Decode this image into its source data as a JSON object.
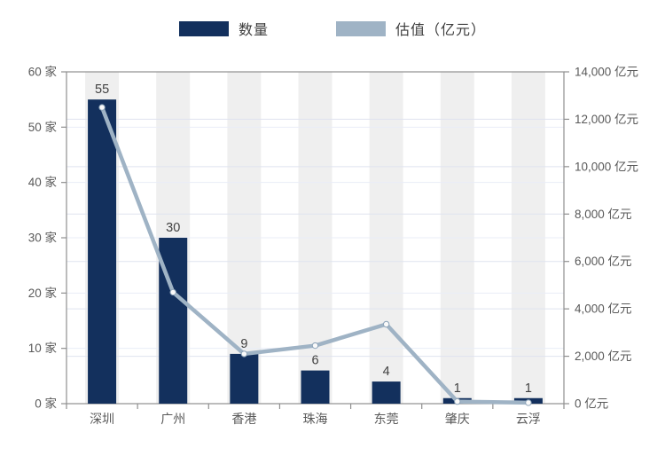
{
  "legend": {
    "items": [
      {
        "label": "数量",
        "color": "#13305d"
      },
      {
        "label": "估值（亿元）",
        "color": "#9fb3c5"
      }
    ]
  },
  "chart_data": {
    "type": "combo",
    "categories": [
      "深圳",
      "广州",
      "香港",
      "珠海",
      "东莞",
      "肇庆",
      "云浮"
    ],
    "series": [
      {
        "name": "数量",
        "type": "bar",
        "axis": "left",
        "color": "#13305d",
        "values": [
          55,
          30,
          9,
          6,
          4,
          1,
          1
        ],
        "data_labels": [
          "55",
          "30",
          "9",
          "6",
          "4",
          "1",
          "1"
        ]
      },
      {
        "name": "估值（亿元）",
        "type": "line",
        "axis": "right",
        "color": "#9fb3c5",
        "values": [
          12500,
          4700,
          2100,
          2450,
          3350,
          90,
          40
        ]
      }
    ],
    "left_axis": {
      "min": 0,
      "max": 60,
      "step": 10,
      "unit": "家",
      "tick_labels": [
        "0 家",
        "10 家",
        "20 家",
        "30 家",
        "40 家",
        "50 家",
        "60 家"
      ]
    },
    "right_axis": {
      "min": 0,
      "max": 14000,
      "step": 2000,
      "unit": "亿元",
      "tick_labels": [
        "0 亿元",
        "2,000 亿元",
        "4,000 亿元",
        "6,000 亿元",
        "8,000 亿元",
        "10,000 亿元",
        "12,000 亿元",
        "14,000 亿元"
      ]
    },
    "grid": true,
    "legend_position": "top",
    "title": "",
    "styles": {
      "band_color": "#efefef",
      "grid_left_color": "#eaedf7",
      "grid_right_color": "#dfe3ef",
      "axis_color": "#8f8f8f",
      "tick_text_color": "#595959",
      "bar_label_color": "#404040",
      "marker_fill": "#fafafa",
      "marker_stroke": "#8ca3b8"
    }
  }
}
